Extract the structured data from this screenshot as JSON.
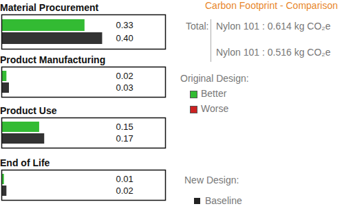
{
  "chart_data": [
    {
      "type": "bar",
      "orientation": "horizontal",
      "title": "Material Procurement",
      "categories": [
        null,
        null
      ],
      "values": [
        0.33,
        0.4
      ],
      "value_labels": [
        "0.33",
        "0.40"
      ],
      "colors": [
        "#33bb33",
        "#333333"
      ],
      "xlim": [
        0,
        0.65
      ],
      "data_labels": true,
      "tick_labels": false
    },
    {
      "type": "bar",
      "orientation": "horizontal",
      "title": "Product Manufacturing",
      "categories": [
        null,
        null
      ],
      "values": [
        0.02,
        0.03
      ],
      "value_labels": [
        "0.02",
        "0.03"
      ],
      "colors": [
        "#33bb33",
        "#333333"
      ],
      "xlim": [
        0,
        0.65
      ],
      "data_labels": true,
      "tick_labels": false
    },
    {
      "type": "bar",
      "orientation": "horizontal",
      "title": "Product Use",
      "categories": [
        null,
        null
      ],
      "values": [
        0.15,
        0.17
      ],
      "value_labels": [
        "0.15",
        "0.17"
      ],
      "colors": [
        "#33bb33",
        "#333333"
      ],
      "xlim": [
        0,
        0.65
      ],
      "data_labels": true,
      "tick_labels": false
    },
    {
      "type": "bar",
      "orientation": "horizontal",
      "title": "End of Life",
      "categories": [
        null,
        null
      ],
      "values": [
        0.01,
        0.02
      ],
      "value_labels": [
        "0.01",
        "0.02"
      ],
      "colors": [
        "#33bb33",
        "#333333"
      ],
      "xlim": [
        0,
        0.65
      ],
      "data_labels": true,
      "tick_labels": false
    }
  ],
  "side_panel": {
    "title": "Carbon Footprint - Comparison",
    "total_label": "Total:",
    "totals": [
      "Nylon 101 : 0.614 kg CO₂e",
      "Nylon 101 : 0.516 kg CO₂e"
    ],
    "original_design": {
      "label": "Original Design:",
      "legend": [
        {
          "name": "Better",
          "color": "#33bb33"
        },
        {
          "name": "Worse",
          "color": "#cc2222"
        }
      ]
    },
    "new_design": {
      "label": "New Design:",
      "legend": [
        {
          "name": "Baseline",
          "color": "#222222"
        }
      ]
    }
  }
}
